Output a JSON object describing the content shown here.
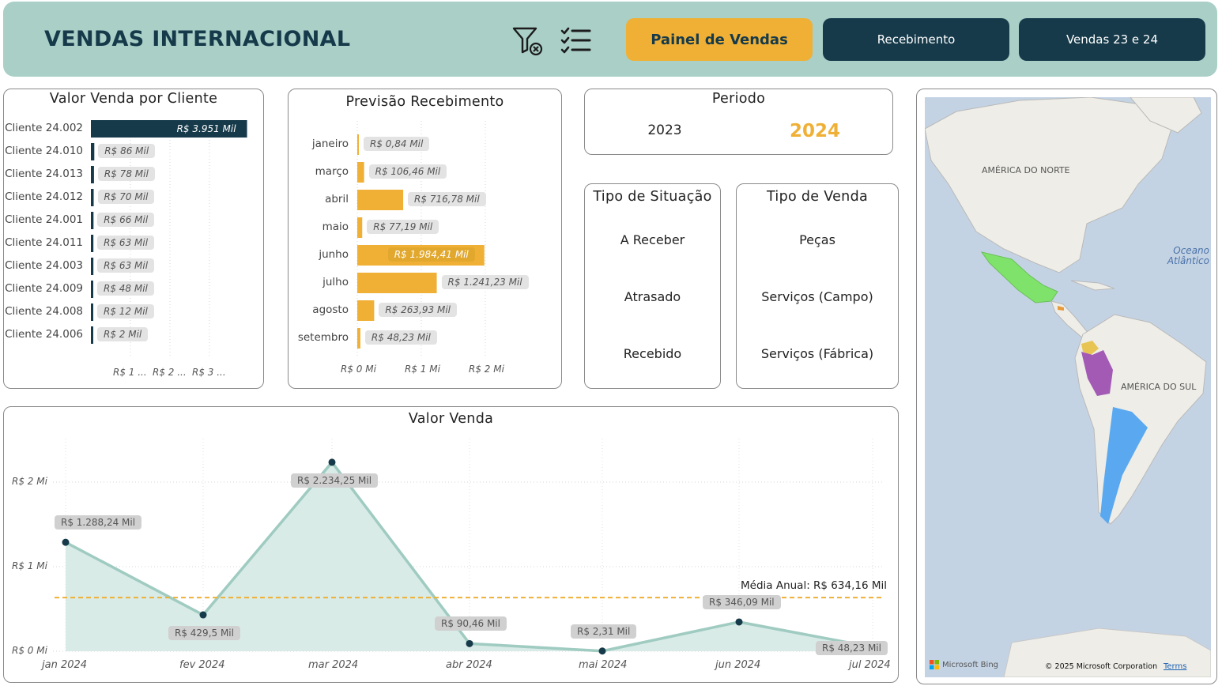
{
  "header": {
    "title": "VENDAS INTERNACIONAL",
    "nav": [
      {
        "label": "Painel de Vendas",
        "active": true
      },
      {
        "label": "Recebimento",
        "active": false
      },
      {
        "label": "Vendas 23 e 24",
        "active": false
      }
    ],
    "icons": [
      "clear-filter-icon",
      "checklist-icon"
    ]
  },
  "colors": {
    "header_bg": "#a9cfc7",
    "dark": "#163a4a",
    "accent": "#efb035",
    "area_fill": "#d9ebe7",
    "line": "#9fcbc1",
    "avg_line": "#efb035"
  },
  "cliente_chart": {
    "title": "Valor Venda por Cliente",
    "x_ticks": [
      "R$ 1 ...",
      "R$ 2 ...",
      "R$ 3 ..."
    ]
  },
  "previsao_chart": {
    "title": "Previsão Recebimento",
    "x_ticks": [
      "R$ 0 Mi",
      "R$ 1 Mi",
      "R$ 2 Mi"
    ]
  },
  "periodo": {
    "title": "Periodo",
    "options": [
      {
        "label": "2023",
        "selected": false
      },
      {
        "label": "2024",
        "selected": true
      }
    ]
  },
  "situacao": {
    "title": "Tipo de Situação",
    "options": [
      "A Receber",
      "Atrasado",
      "Recebido"
    ]
  },
  "tipo_venda": {
    "title": "Tipo de Venda",
    "options": [
      "Peças",
      "Serviços (Campo)",
      "Serviços (Fábrica)"
    ]
  },
  "valor_venda_chart": {
    "title": "Valor Venda",
    "y_ticks": [
      "R$ 2 Mi",
      "R$ 1 Mi",
      "R$ 0 Mi"
    ],
    "avg_label": "Média Anual: R$ 634,16 Mil"
  },
  "map": {
    "label_north": "AMÉRICA DO NORTE",
    "label_south": "AMÉRICA DO SUL",
    "ocean_label": "Oceano Atlântico",
    "attribution_brand": "Microsoft Bing",
    "copyright": "© 2025 Microsoft Corporation",
    "terms": "Terms"
  },
  "chart_data": [
    {
      "type": "bar",
      "orientation": "horizontal",
      "title": "Valor Venda por Cliente",
      "categories": [
        "Cliente 24.002",
        "Cliente 24.010",
        "Cliente 24.013",
        "Cliente 24.012",
        "Cliente 24.001",
        "Cliente 24.011",
        "Cliente 24.003",
        "Cliente 24.009",
        "Cliente 24.008",
        "Cliente 24.006"
      ],
      "values": [
        3951,
        86,
        78,
        70,
        66,
        63,
        63,
        48,
        12,
        2
      ],
      "value_labels": [
        "R$ 3.951 Mil",
        "R$ 86 Mil",
        "R$ 78 Mil",
        "R$ 70 Mil",
        "R$ 66 Mil",
        "R$ 63 Mil",
        "R$ 63 Mil",
        "R$ 48 Mil",
        "R$ 12 Mil",
        "R$ 2 Mil"
      ],
      "xlim": [
        0,
        4000
      ],
      "unit": "R$ Mil",
      "color": "#163a4a"
    },
    {
      "type": "bar",
      "orientation": "horizontal",
      "title": "Previsão Recebimento",
      "categories": [
        "janeiro",
        "março",
        "abril",
        "maio",
        "junho",
        "julho",
        "agosto",
        "setembro"
      ],
      "values": [
        0.84,
        106.46,
        716.78,
        77.19,
        1984.41,
        1241.23,
        263.93,
        48.23
      ],
      "value_labels": [
        "R$ 0,84 Mil",
        "R$ 106,46 Mil",
        "R$ 716,78 Mil",
        "R$ 77,19 Mil",
        "R$ 1.984,41 Mil",
        "R$ 1.241,23 Mil",
        "R$ 263,93 Mil",
        "R$ 48,23 Mil"
      ],
      "xlim": [
        0,
        2000
      ],
      "unit": "R$ Mil",
      "color": "#efb035"
    },
    {
      "type": "area",
      "title": "Valor Venda",
      "x": [
        "jan 2024",
        "fev 2024",
        "mar 2024",
        "abr 2024",
        "mai 2024",
        "jun 2024",
        "jul 2024"
      ],
      "values": [
        1288.24,
        429.5,
        2234.25,
        90.46,
        2.31,
        346.09,
        48.23
      ],
      "value_labels": [
        "R$ 1.288,24 Mil",
        "R$ 429,5 Mil",
        "R$ 2.234,25 Mil",
        "R$ 90,46 Mil",
        "R$ 2,31 Mil",
        "R$ 346,09 Mil",
        "R$ 48,23 Mil"
      ],
      "ylim": [
        0,
        2400
      ],
      "unit": "R$ Mil",
      "average": 634.16,
      "grid": true
    }
  ]
}
